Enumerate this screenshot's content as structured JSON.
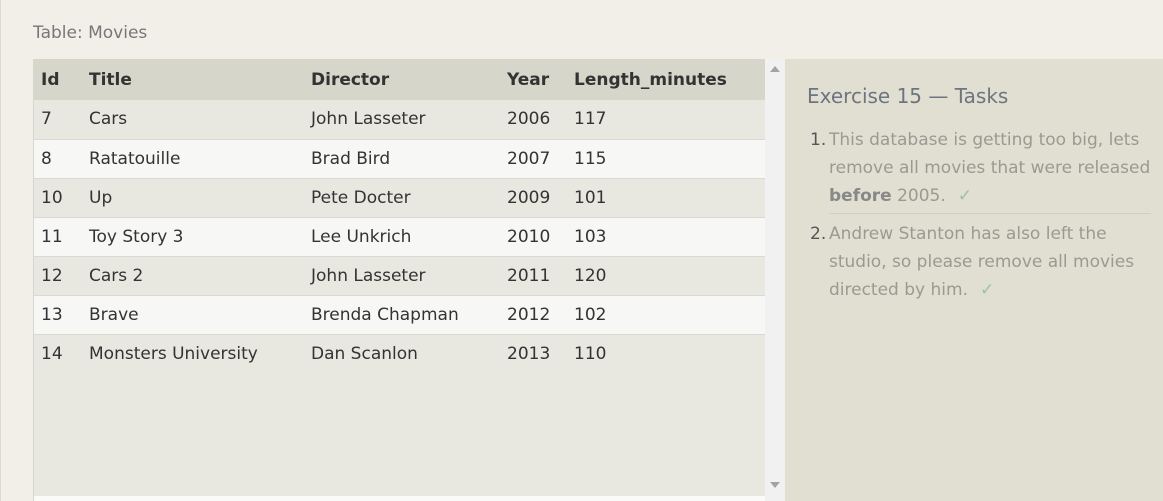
{
  "table_title": "Table: Movies",
  "columns": [
    "Id",
    "Title",
    "Director",
    "Year",
    "Length_minutes"
  ],
  "rows": [
    [
      "7",
      "Cars",
      "John Lasseter",
      "2006",
      "117"
    ],
    [
      "8",
      "Ratatouille",
      "Brad Bird",
      "2007",
      "115"
    ],
    [
      "10",
      "Up",
      "Pete Docter",
      "2009",
      "101"
    ],
    [
      "11",
      "Toy Story 3",
      "Lee Unkrich",
      "2010",
      "103"
    ],
    [
      "12",
      "Cars 2",
      "John Lasseter",
      "2011",
      "120"
    ],
    [
      "13",
      "Brave",
      "Brenda Chapman",
      "2012",
      "102"
    ],
    [
      "14",
      "Monsters University",
      "Dan Scanlon",
      "2013",
      "110"
    ]
  ],
  "tasks_panel": {
    "title": "Exercise 15 — Tasks",
    "tasks": [
      {
        "number": "1.",
        "text_before": "This database is getting too big, lets remove all movies that were released ",
        "bold": "before",
        "text_after": " 2005.",
        "check": "✓"
      },
      {
        "number": "2.",
        "text_before": "Andrew Stanton has also left the studio, so please remove all movies directed by him.",
        "check": "✓"
      }
    ]
  },
  "colors": {
    "page_background": "#f1efe8",
    "header_background": "#d7d6cb",
    "tasks_background": "#e0dfd2",
    "check_color": "#9bc59b"
  }
}
